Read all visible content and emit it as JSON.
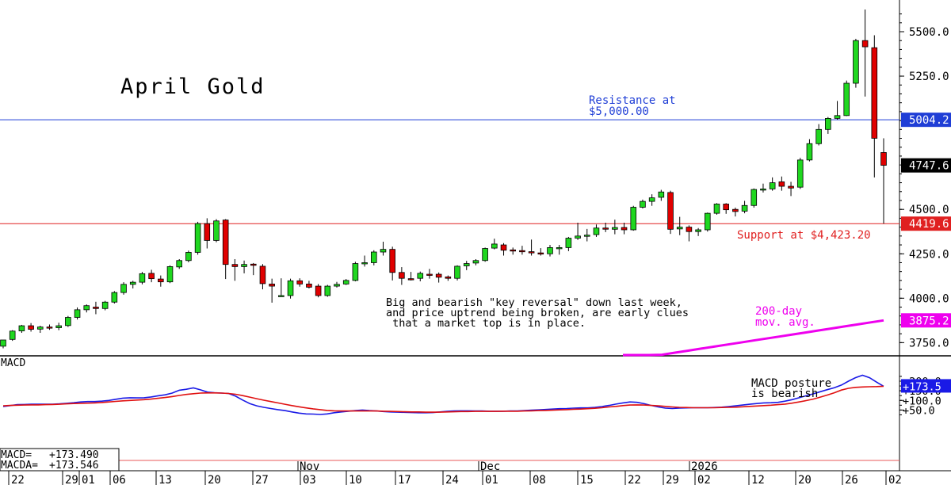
{
  "chart_data": [
    {
      "type": "candlestick",
      "title": "April Gold",
      "y_ticks": [
        3750.0,
        4000.0,
        4250.0,
        4500.0,
        5000.0,
        5250.0,
        5500.0
      ],
      "y_tick_labels": [
        "3750.0",
        "4000.0",
        "4250.0",
        "4500.0",
        "5000.0",
        "5250.0",
        "5500.0"
      ],
      "ylim": [
        3660,
        5670
      ],
      "x_tick_labels": [
        "22",
        "29",
        "01",
        "06",
        "13",
        "20",
        "27",
        "03",
        "10",
        "17",
        "24",
        "01",
        "08",
        "15",
        "22",
        "29",
        "02",
        "12",
        "20",
        "26",
        "02"
      ],
      "period_labels": [
        "Nov",
        "Dec",
        "2026"
      ],
      "candles": [
        [
          3730,
          3765,
          3718,
          3765
        ],
        [
          3768,
          3820,
          3760,
          3815
        ],
        [
          3816,
          3850,
          3805,
          3845
        ],
        [
          3845,
          3860,
          3812,
          3825
        ],
        [
          3826,
          3845,
          3805,
          3838
        ],
        [
          3838,
          3852,
          3822,
          3832
        ],
        [
          3834,
          3862,
          3820,
          3845
        ],
        [
          3846,
          3900,
          3838,
          3892
        ],
        [
          3892,
          3948,
          3880,
          3935
        ],
        [
          3935,
          3965,
          3920,
          3958
        ],
        [
          3950,
          3980,
          3910,
          3942
        ],
        [
          3942,
          3985,
          3932,
          3978
        ],
        [
          3978,
          4040,
          3970,
          4032
        ],
        [
          4032,
          4090,
          4020,
          4078
        ],
        [
          4078,
          4098,
          4055,
          4090
        ],
        [
          4090,
          4148,
          4078,
          4138
        ],
        [
          4140,
          4160,
          4090,
          4110
        ],
        [
          4108,
          4128,
          4065,
          4092
        ],
        [
          4092,
          4185,
          4085,
          4178
        ],
        [
          4176,
          4220,
          4165,
          4212
        ],
        [
          4212,
          4268,
          4202,
          4258
        ],
        [
          4258,
          4430,
          4245,
          4420
        ],
        [
          4420,
          4450,
          4280,
          4325
        ],
        [
          4325,
          4445,
          4315,
          4435
        ],
        [
          4440,
          4445,
          4108,
          4190
        ],
        [
          4190,
          4220,
          4098,
          4178
        ],
        [
          4178,
          4212,
          4140,
          4190
        ],
        [
          4192,
          4198,
          4130,
          4185
        ],
        [
          4180,
          4192,
          4050,
          4082
        ],
        [
          4080,
          4110,
          3975,
          4068
        ],
        [
          4012,
          4112,
          4010,
          4015
        ],
        [
          4015,
          4110,
          3998,
          4098
        ],
        [
          4098,
          4112,
          4065,
          4080
        ],
        [
          4080,
          4098,
          4055,
          4062
        ],
        [
          4068,
          4080,
          4005,
          4015
        ],
        [
          4015,
          4075,
          4008,
          4068
        ],
        [
          4068,
          4092,
          4060,
          4078
        ],
        [
          4080,
          4108,
          4075,
          4100
        ],
        [
          4100,
          4205,
          4095,
          4195
        ],
        [
          4195,
          4240,
          4178,
          4200
        ],
        [
          4200,
          4270,
          4185,
          4260
        ],
        [
          4260,
          4318,
          4240,
          4275
        ],
        [
          4275,
          4290,
          4100,
          4145
        ],
        [
          4145,
          4175,
          4075,
          4112
        ],
        [
          4110,
          4148,
          4100,
          4108
        ],
        [
          4112,
          4150,
          4095,
          4140
        ],
        [
          4135,
          4165,
          4110,
          4132
        ],
        [
          4135,
          4145,
          4088,
          4118
        ],
        [
          4120,
          4128,
          4098,
          4112
        ],
        [
          4112,
          4185,
          4100,
          4180
        ],
        [
          4182,
          4210,
          4158,
          4195
        ],
        [
          4198,
          4220,
          4185,
          4212
        ],
        [
          4212,
          4285,
          4205,
          4280
        ],
        [
          4282,
          4335,
          4275,
          4305
        ],
        [
          4300,
          4310,
          4240,
          4270
        ],
        [
          4272,
          4285,
          4245,
          4268
        ],
        [
          4268,
          4295,
          4245,
          4262
        ],
        [
          4262,
          4330,
          4240,
          4255
        ],
        [
          4255,
          4282,
          4240,
          4250
        ],
        [
          4250,
          4300,
          4235,
          4285
        ],
        [
          4285,
          4300,
          4245,
          4285
        ],
        [
          4285,
          4345,
          4265,
          4338
        ],
        [
          4338,
          4425,
          4328,
          4350
        ],
        [
          4352,
          4390,
          4320,
          4355
        ],
        [
          4358,
          4415,
          4345,
          4395
        ],
        [
          4395,
          4425,
          4372,
          4390
        ],
        [
          4388,
          4442,
          4360,
          4398
        ],
        [
          4398,
          4425,
          4360,
          4385
        ],
        [
          4385,
          4520,
          4380,
          4512
        ],
        [
          4512,
          4555,
          4505,
          4545
        ],
        [
          4545,
          4585,
          4520,
          4565
        ],
        [
          4568,
          4610,
          4548,
          4598
        ],
        [
          4595,
          4605,
          4362,
          4388
        ],
        [
          4390,
          4458,
          4355,
          4400
        ],
        [
          4400,
          4410,
          4320,
          4375
        ],
        [
          4375,
          4395,
          4350,
          4385
        ],
        [
          4385,
          4482,
          4375,
          4478
        ],
        [
          4478,
          4535,
          4470,
          4530
        ],
        [
          4530,
          4535,
          4475,
          4498
        ],
        [
          4500,
          4510,
          4460,
          4488
        ],
        [
          4490,
          4548,
          4478,
          4522
        ],
        [
          4522,
          4618,
          4510,
          4612
        ],
        [
          4612,
          4645,
          4595,
          4615
        ],
        [
          4615,
          4680,
          4605,
          4650
        ],
        [
          4655,
          4685,
          4605,
          4630
        ],
        [
          4630,
          4655,
          4575,
          4620
        ],
        [
          4625,
          4790,
          4615,
          4778
        ],
        [
          4778,
          4895,
          4770,
          4870
        ],
        [
          4870,
          4980,
          4860,
          4950
        ],
        [
          4950,
          5020,
          4925,
          5012
        ],
        [
          5012,
          5110,
          5005,
          5028
        ],
        [
          5028,
          5225,
          5025,
          5210
        ],
        [
          5210,
          5460,
          5185,
          5450
        ],
        [
          5450,
          5625,
          5135,
          5415
        ],
        [
          5410,
          5480,
          4680,
          4900
        ],
        [
          4820,
          4900,
          4420,
          4748
        ]
      ],
      "horizontal_lines": [
        {
          "value": 5004.2,
          "label": "5004.2",
          "color": "#1f3ed6"
        },
        {
          "value": 4419.6,
          "label": "4419.6",
          "color": "#e02020"
        }
      ],
      "last_price_label": "4747.6",
      "last_price": 4747.6,
      "moving_average": {
        "name": "200-day mov. avg.",
        "color": "#ee00ee",
        "end_label": "3875.2",
        "start_value": 3648,
        "end_value": 3875.2
      },
      "annotations": {
        "resistance": [
          "Resistance at",
          "$5,000.00"
        ],
        "support": "Support at $4,423.20",
        "commentary": [
          "Big and bearish \"key reversal\" down last week,",
          "and price uptrend being broken, are early clues",
          " that a market top is in place."
        ],
        "ma_label": [
          "200-day",
          "mov. avg."
        ]
      },
      "up_color": "#1fd71f",
      "down_color": "#e00000"
    },
    {
      "type": "line",
      "title": "MACD",
      "y_ticks": [
        50,
        100,
        150,
        200
      ],
      "y_tick_labels": [
        "+50.0",
        "+100.0",
        "+150.0",
        "+200.0"
      ],
      "ylim": [
        15,
        240
      ],
      "series": [
        {
          "name": "MACD",
          "color": "#1a1ae6",
          "values": [
            68,
            73,
            78,
            79,
            80,
            80,
            80,
            80,
            82,
            85,
            88,
            92,
            94,
            94,
            96,
            100,
            106,
            112,
            114,
            113,
            114,
            118,
            124,
            129,
            138,
            153,
            158,
            165,
            155,
            143,
            140,
            138,
            136,
            122,
            102,
            84,
            72,
            64,
            58,
            52,
            47,
            40,
            34,
            30,
            29,
            27,
            30,
            36,
            40,
            44,
            47,
            50,
            47,
            45,
            42,
            40,
            39,
            38,
            37,
            36,
            36,
            37,
            40,
            43,
            45,
            46,
            46,
            45,
            45,
            44,
            44,
            44,
            45,
            45,
            47,
            49,
            51,
            53,
            55,
            57,
            58,
            60,
            61,
            61,
            64,
            68,
            74,
            81,
            87,
            92,
            90,
            83,
            74,
            66,
            60,
            58,
            60,
            61,
            62,
            62,
            62,
            63,
            65,
            68,
            72,
            76,
            80,
            84,
            87,
            88,
            90,
            96,
            104,
            114,
            124,
            134,
            145,
            156,
            166,
            180,
            200,
            218,
            231,
            218,
            195,
            173.5
          ]
        },
        {
          "name": "MACDA",
          "color": "#e01010",
          "values": [
            72,
            74,
            75,
            76,
            77,
            77,
            78,
            79,
            80,
            82,
            84,
            85,
            86,
            87,
            89,
            92,
            95,
            98,
            100,
            102,
            104,
            107,
            111,
            115,
            120,
            126,
            131,
            135,
            138,
            139,
            139,
            138,
            136,
            132,
            125,
            117,
            109,
            101,
            94,
            87,
            80,
            73,
            67,
            61,
            56,
            52,
            48,
            46,
            45,
            45,
            45,
            45,
            45,
            45,
            44,
            43,
            42,
            41,
            40,
            40,
            39,
            39,
            39,
            40,
            41,
            42,
            42,
            43,
            43,
            43,
            43,
            44,
            44,
            44,
            45,
            46,
            47,
            48,
            49,
            51,
            52,
            54,
            55,
            57,
            59,
            62,
            66,
            69,
            73,
            76,
            77,
            76,
            74,
            72,
            69,
            66,
            64,
            63,
            62,
            62,
            62,
            62,
            63,
            64,
            65,
            67,
            69,
            71,
            73,
            75,
            78,
            81,
            86,
            92,
            99,
            107,
            117,
            128,
            140,
            154,
            163,
            168,
            170,
            171,
            172,
            173.546
          ]
        }
      ],
      "readout": [
        {
          "label": "MACD=",
          "value": "+173.490"
        },
        {
          "label": "MACDA=",
          "value": "+173.546"
        }
      ],
      "end_label": "173.5",
      "annotation": [
        "MACD posture",
        "is bearish"
      ]
    }
  ]
}
